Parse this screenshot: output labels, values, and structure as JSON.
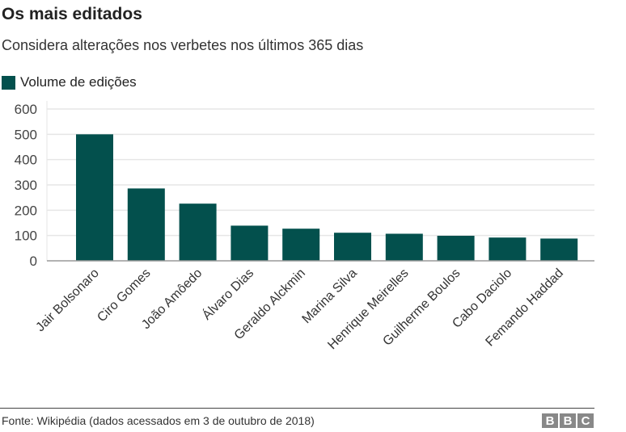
{
  "chart_data": {
    "type": "bar",
    "title": "Os mais editados",
    "subtitle": "Considera alterações nos verbetes nos últimos 365 dias",
    "legend": [
      {
        "name": "Volume de edições",
        "color": "#03504d"
      }
    ],
    "legend_position": "top-left",
    "categories": [
      "Jair Bolsonaro",
      "Ciro Gomes",
      "João Amôedo",
      "Álvaro Dias",
      "Geraldo Alckmin",
      "Marina Silva",
      "Henrique Meirelles",
      "Guilherme Boulos",
      "Cabo Daciolo",
      "Femando Haddad"
    ],
    "series": [
      {
        "name": "Volume de edições",
        "values": [
          500,
          286,
          226,
          139,
          127,
          111,
          107,
          99,
          92,
          88
        ]
      }
    ],
    "ylim": [
      0,
      600
    ],
    "yticks": [
      0,
      100,
      200,
      300,
      400,
      500,
      600
    ],
    "grid": true,
    "bar_color": "#03504d"
  },
  "footer": {
    "source": "Fonte: Wikipédia (dados acessados em 3 de outubro de 2018)",
    "logo": "BBC"
  }
}
